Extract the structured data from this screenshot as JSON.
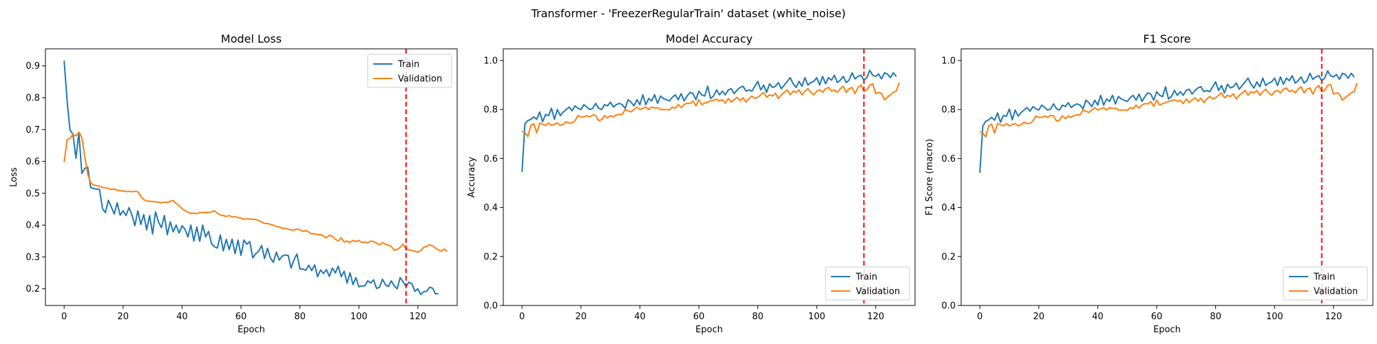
{
  "suptitle": "Transformer - 'FreezerRegularTrain' dataset (white_noise)",
  "colors": {
    "train": "#1f77b4",
    "validation": "#ff7f0e",
    "marker": "#ff0000"
  },
  "chart_data": [
    {
      "type": "line",
      "title": "Model Loss",
      "xlabel": "Epoch",
      "ylabel": "Loss",
      "xlim": [
        -6.35,
        133.35
      ],
      "ylim": [
        0.1476,
        0.9534
      ],
      "xticks": [
        0,
        20,
        40,
        60,
        80,
        100,
        120
      ],
      "yticks": [
        0.2,
        0.3,
        0.4,
        0.5,
        0.6,
        0.7,
        0.8,
        0.9
      ],
      "tick_decimals": 1,
      "legend": "upper right",
      "vline_x": 116,
      "series": [
        {
          "name": "Train",
          "values": [
            0.916,
            0.79,
            0.698,
            0.685,
            0.61,
            0.69,
            0.562,
            0.578,
            0.582,
            0.518,
            0.515,
            0.513,
            0.512,
            0.452,
            0.439,
            0.478,
            0.457,
            0.435,
            0.47,
            0.431,
            0.445,
            0.43,
            0.455,
            0.432,
            0.398,
            0.445,
            0.402,
            0.433,
            0.385,
            0.43,
            0.372,
            0.442,
            0.41,
            0.392,
            0.43,
            0.37,
            0.41,
            0.379,
            0.4,
            0.375,
            0.398,
            0.387,
            0.363,
            0.4,
            0.35,
            0.394,
            0.349,
            0.4,
            0.363,
            0.38,
            0.342,
            0.332,
            0.328,
            0.369,
            0.319,
            0.355,
            0.323,
            0.356,
            0.31,
            0.353,
            0.305,
            0.353,
            0.34,
            0.348,
            0.297,
            0.31,
            0.318,
            0.336,
            0.295,
            0.327,
            0.296,
            0.283,
            0.315,
            0.29,
            0.303,
            0.306,
            0.305,
            0.265,
            0.292,
            0.309,
            0.262,
            0.262,
            0.258,
            0.274,
            0.257,
            0.275,
            0.238,
            0.259,
            0.248,
            0.26,
            0.239,
            0.265,
            0.25,
            0.271,
            0.238,
            0.255,
            0.218,
            0.25,
            0.213,
            0.235,
            0.206,
            0.209,
            0.209,
            0.225,
            0.218,
            0.228,
            0.201,
            0.205,
            0.23,
            0.213,
            0.207,
            0.225,
            0.209,
            0.2,
            0.235,
            0.222,
            0.207,
            0.221,
            0.215,
            0.192,
            0.2,
            0.182,
            0.191,
            0.192,
            0.205,
            0.202,
            0.184,
            0.185
          ]
        },
        {
          "name": "Validation",
          "values": [
            0.598,
            0.668,
            0.672,
            0.685,
            0.68,
            0.692,
            0.675,
            0.615,
            0.56,
            0.533,
            0.525,
            0.524,
            0.522,
            0.518,
            0.517,
            0.515,
            0.512,
            0.513,
            0.51,
            0.508,
            0.507,
            0.505,
            0.506,
            0.505,
            0.506,
            0.505,
            0.49,
            0.48,
            0.476,
            0.475,
            0.474,
            0.473,
            0.472,
            0.47,
            0.472,
            0.471,
            0.475,
            0.477,
            0.468,
            0.461,
            0.452,
            0.445,
            0.44,
            0.437,
            0.437,
            0.436,
            0.439,
            0.44,
            0.439,
            0.44,
            0.441,
            0.445,
            0.437,
            0.432,
            0.43,
            0.427,
            0.43,
            0.425,
            0.427,
            0.423,
            0.422,
            0.418,
            0.42,
            0.419,
            0.418,
            0.418,
            0.414,
            0.41,
            0.405,
            0.405,
            0.402,
            0.4,
            0.395,
            0.394,
            0.39,
            0.39,
            0.387,
            0.385,
            0.384,
            0.388,
            0.385,
            0.38,
            0.383,
            0.378,
            0.372,
            0.373,
            0.37,
            0.37,
            0.366,
            0.36,
            0.368,
            0.365,
            0.356,
            0.35,
            0.36,
            0.347,
            0.35,
            0.345,
            0.352,
            0.348,
            0.352,
            0.345,
            0.347,
            0.344,
            0.35,
            0.348,
            0.343,
            0.338,
            0.345,
            0.34,
            0.337,
            0.333,
            0.321,
            0.323,
            0.33,
            0.34,
            0.325,
            0.322,
            0.32,
            0.318,
            0.315,
            0.32,
            0.33,
            0.334,
            0.338,
            0.335,
            0.328,
            0.322,
            0.318,
            0.325,
            0.317
          ]
        }
      ]
    },
    {
      "type": "line",
      "title": "Model Accuracy",
      "xlabel": "Epoch",
      "ylabel": "Accuracy",
      "xlim": [
        -6.35,
        133.35
      ],
      "ylim": [
        0,
        1.0477
      ],
      "xticks": [
        0,
        20,
        40,
        60,
        80,
        100,
        120
      ],
      "yticks": [
        0.0,
        0.2,
        0.4,
        0.6,
        0.8,
        1.0
      ],
      "tick_decimals": 1,
      "legend": "lower right",
      "vline_x": 116,
      "series": [
        {
          "name": "Train",
          "values": [
            0.545,
            0.742,
            0.755,
            0.76,
            0.77,
            0.76,
            0.79,
            0.75,
            0.78,
            0.775,
            0.805,
            0.76,
            0.8,
            0.775,
            0.79,
            0.8,
            0.81,
            0.795,
            0.815,
            0.805,
            0.8,
            0.82,
            0.81,
            0.8,
            0.805,
            0.825,
            0.805,
            0.8,
            0.82,
            0.815,
            0.83,
            0.81,
            0.82,
            0.825,
            0.82,
            0.805,
            0.84,
            0.83,
            0.815,
            0.84,
            0.82,
            0.86,
            0.82,
            0.845,
            0.835,
            0.86,
            0.825,
            0.855,
            0.845,
            0.84,
            0.835,
            0.85,
            0.86,
            0.84,
            0.865,
            0.835,
            0.855,
            0.87,
            0.865,
            0.84,
            0.875,
            0.86,
            0.855,
            0.895,
            0.845,
            0.855,
            0.88,
            0.86,
            0.875,
            0.86,
            0.88,
            0.885,
            0.865,
            0.88,
            0.89,
            0.895,
            0.875,
            0.88,
            0.875,
            0.895,
            0.915,
            0.88,
            0.9,
            0.87,
            0.905,
            0.89,
            0.895,
            0.91,
            0.885,
            0.9,
            0.915,
            0.93,
            0.905,
            0.89,
            0.915,
            0.895,
            0.93,
            0.9,
            0.91,
            0.915,
            0.93,
            0.9,
            0.935,
            0.905,
            0.93,
            0.92,
            0.94,
            0.91,
            0.92,
            0.935,
            0.91,
            0.92,
            0.95,
            0.925,
            0.935,
            0.94,
            0.92,
            0.93,
            0.96,
            0.94,
            0.935,
            0.945,
            0.925,
            0.95,
            0.945,
            0.93,
            0.95,
            0.935
          ]
        },
        {
          "name": "Validation",
          "values": [
            0.712,
            0.706,
            0.69,
            0.735,
            0.742,
            0.705,
            0.745,
            0.74,
            0.735,
            0.745,
            0.735,
            0.74,
            0.745,
            0.735,
            0.74,
            0.75,
            0.745,
            0.745,
            0.755,
            0.775,
            0.77,
            0.77,
            0.775,
            0.77,
            0.778,
            0.776,
            0.755,
            0.758,
            0.776,
            0.765,
            0.775,
            0.77,
            0.778,
            0.78,
            0.78,
            0.8,
            0.795,
            0.79,
            0.8,
            0.81,
            0.8,
            0.805,
            0.81,
            0.8,
            0.81,
            0.806,
            0.808,
            0.8,
            0.8,
            0.8,
            0.798,
            0.81,
            0.805,
            0.82,
            0.808,
            0.82,
            0.826,
            0.825,
            0.835,
            0.815,
            0.84,
            0.82,
            0.826,
            0.83,
            0.835,
            0.838,
            0.842,
            0.835,
            0.84,
            0.826,
            0.845,
            0.83,
            0.84,
            0.85,
            0.836,
            0.848,
            0.83,
            0.845,
            0.855,
            0.845,
            0.85,
            0.86,
            0.87,
            0.85,
            0.86,
            0.855,
            0.866,
            0.845,
            0.86,
            0.87,
            0.88,
            0.86,
            0.875,
            0.87,
            0.88,
            0.86,
            0.875,
            0.885,
            0.87,
            0.86,
            0.875,
            0.88,
            0.87,
            0.885,
            0.89,
            0.875,
            0.88,
            0.87,
            0.885,
            0.895,
            0.87,
            0.885,
            0.89,
            0.865,
            0.89,
            0.9,
            0.875,
            0.88,
            0.9,
            0.905,
            0.865,
            0.87,
            0.865,
            0.84,
            0.85,
            0.86,
            0.87,
            0.875,
            0.91
          ]
        }
      ]
    },
    {
      "type": "line",
      "title": "F1 Score",
      "xlabel": "Epoch",
      "ylabel": "F1 Score (macro)",
      "xlim": [
        -6.35,
        133.35
      ],
      "ylim": [
        0,
        1.0477
      ],
      "xticks": [
        0,
        20,
        40,
        60,
        80,
        100,
        120
      ],
      "yticks": [
        0.0,
        0.2,
        0.4,
        0.6,
        0.8,
        1.0
      ],
      "tick_decimals": 1,
      "legend": "lower right",
      "vline_x": 116,
      "series": [
        {
          "name": "Train",
          "values": [
            0.542,
            0.732,
            0.752,
            0.758,
            0.768,
            0.756,
            0.786,
            0.748,
            0.776,
            0.772,
            0.802,
            0.758,
            0.798,
            0.773,
            0.788,
            0.798,
            0.808,
            0.793,
            0.812,
            0.803,
            0.798,
            0.818,
            0.808,
            0.798,
            0.802,
            0.823,
            0.803,
            0.798,
            0.818,
            0.812,
            0.828,
            0.808,
            0.818,
            0.823,
            0.818,
            0.803,
            0.838,
            0.828,
            0.812,
            0.838,
            0.818,
            0.858,
            0.818,
            0.843,
            0.833,
            0.858,
            0.823,
            0.853,
            0.843,
            0.838,
            0.833,
            0.848,
            0.858,
            0.838,
            0.863,
            0.833,
            0.853,
            0.868,
            0.863,
            0.838,
            0.873,
            0.858,
            0.853,
            0.893,
            0.843,
            0.853,
            0.878,
            0.858,
            0.873,
            0.858,
            0.878,
            0.883,
            0.863,
            0.878,
            0.888,
            0.893,
            0.873,
            0.878,
            0.873,
            0.893,
            0.913,
            0.878,
            0.898,
            0.868,
            0.903,
            0.888,
            0.893,
            0.908,
            0.883,
            0.898,
            0.913,
            0.928,
            0.903,
            0.888,
            0.913,
            0.893,
            0.928,
            0.898,
            0.908,
            0.913,
            0.928,
            0.898,
            0.933,
            0.903,
            0.928,
            0.918,
            0.938,
            0.908,
            0.918,
            0.933,
            0.908,
            0.918,
            0.948,
            0.923,
            0.933,
            0.938,
            0.918,
            0.928,
            0.958,
            0.938,
            0.933,
            0.943,
            0.923,
            0.948,
            0.943,
            0.928,
            0.948,
            0.933
          ]
        },
        {
          "name": "Validation",
          "values": [
            0.71,
            0.704,
            0.688,
            0.733,
            0.74,
            0.703,
            0.743,
            0.738,
            0.733,
            0.743,
            0.733,
            0.738,
            0.743,
            0.733,
            0.738,
            0.748,
            0.743,
            0.743,
            0.753,
            0.773,
            0.768,
            0.768,
            0.773,
            0.768,
            0.776,
            0.774,
            0.753,
            0.756,
            0.774,
            0.763,
            0.773,
            0.768,
            0.776,
            0.778,
            0.778,
            0.798,
            0.793,
            0.788,
            0.798,
            0.808,
            0.798,
            0.803,
            0.808,
            0.798,
            0.808,
            0.804,
            0.806,
            0.798,
            0.798,
            0.798,
            0.796,
            0.808,
            0.803,
            0.818,
            0.806,
            0.818,
            0.824,
            0.823,
            0.833,
            0.813,
            0.838,
            0.818,
            0.824,
            0.828,
            0.833,
            0.836,
            0.84,
            0.833,
            0.838,
            0.824,
            0.843,
            0.828,
            0.838,
            0.848,
            0.834,
            0.846,
            0.828,
            0.843,
            0.853,
            0.843,
            0.848,
            0.858,
            0.868,
            0.848,
            0.858,
            0.853,
            0.864,
            0.843,
            0.858,
            0.868,
            0.878,
            0.858,
            0.873,
            0.868,
            0.878,
            0.858,
            0.873,
            0.883,
            0.868,
            0.858,
            0.873,
            0.878,
            0.868,
            0.883,
            0.888,
            0.873,
            0.878,
            0.868,
            0.883,
            0.893,
            0.868,
            0.883,
            0.888,
            0.863,
            0.888,
            0.898,
            0.873,
            0.878,
            0.898,
            0.903,
            0.863,
            0.868,
            0.863,
            0.838,
            0.848,
            0.858,
            0.868,
            0.873,
            0.908
          ]
        }
      ]
    }
  ]
}
